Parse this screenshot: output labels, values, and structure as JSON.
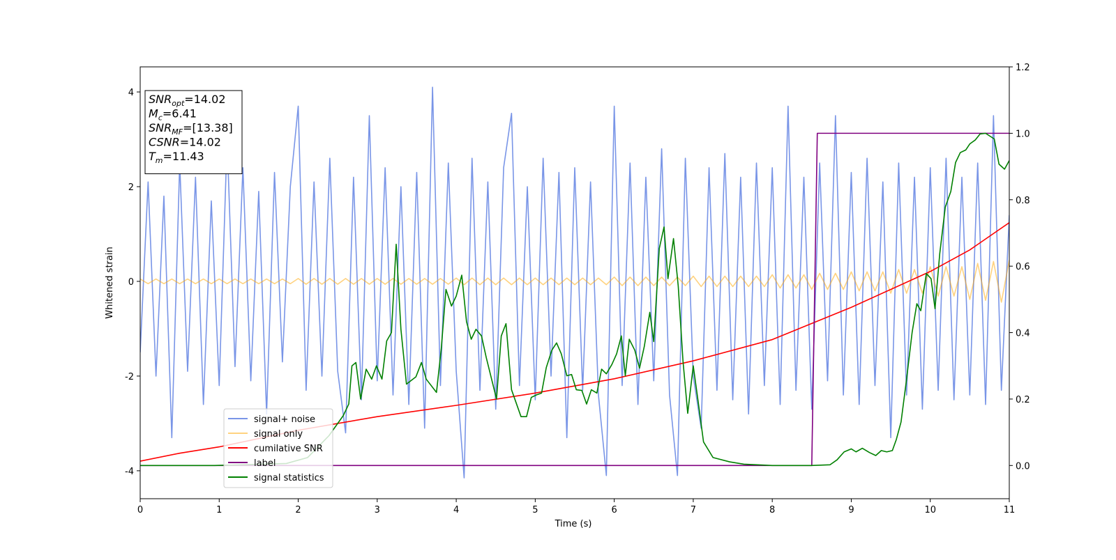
{
  "chart_data": {
    "type": "line",
    "xlabel": "Time (s)",
    "ylabel": "Whitened strain",
    "xlim": [
      0,
      11
    ],
    "xticks": [
      0,
      1,
      2,
      3,
      4,
      5,
      6,
      7,
      8,
      9,
      10,
      11
    ],
    "ylim": [
      -4.59,
      4.53
    ],
    "yticks": [
      -4,
      -2,
      0,
      2,
      4
    ],
    "y2lim": [
      -0.1,
      1.2
    ],
    "y2ticks": [
      {
        "value": 0,
        "label": "0.0"
      },
      0.2,
      0.4,
      0.6,
      0.8,
      {
        "value": 1,
        "label": "1.0"
      },
      1.2
    ],
    "legend": "lower left",
    "annotation_box": [
      {
        "text": "SNR",
        "sub": "opt",
        "rest": "=14.02"
      },
      {
        "text": "M",
        "sub": "c",
        "rest": "=6.41"
      },
      {
        "text": "SNR",
        "sub": "MF",
        "rest": "=[13.38]"
      },
      {
        "text": "CSNR",
        "rest": "=14.02"
      },
      {
        "text": "T",
        "sub": "m",
        "rest": "=11.43"
      }
    ],
    "series": [
      {
        "name": "signal+ noise",
        "color": "#6a89e4",
        "alpha": 0.9,
        "x": [
          0,
          0.1,
          0.2,
          0.3,
          0.4,
          0.5,
          0.6,
          0.7,
          0.8,
          0.9,
          1,
          1.1,
          1.2,
          1.3,
          1.4,
          1.5,
          1.6,
          1.7,
          1.8,
          1.9,
          2,
          2.1,
          2.2,
          2.3,
          2.4,
          2.5,
          2.6,
          2.7,
          2.8,
          2.9,
          3,
          3.1,
          3.2,
          3.3,
          3.4,
          3.5,
          3.6,
          3.7,
          3.8,
          3.9,
          4,
          4.1,
          4.2,
          4.3,
          4.4,
          4.5,
          4.6,
          4.7,
          4.8,
          4.9,
          5,
          5.1,
          5.2,
          5.3,
          5.4,
          5.5,
          5.6,
          5.7,
          5.8,
          5.9,
          6,
          6.1,
          6.2,
          6.3,
          6.4,
          6.5,
          6.6,
          6.7,
          6.8,
          6.9,
          7,
          7.1,
          7.2,
          7.3,
          7.4,
          7.5,
          7.6,
          7.7,
          7.8,
          7.9,
          8,
          8.1,
          8.2,
          8.3,
          8.4,
          8.5,
          8.6,
          8.7,
          8.8,
          8.9,
          9,
          9.1,
          9.2,
          9.3,
          9.4,
          9.5,
          9.6,
          9.7,
          9.8,
          9.9,
          10,
          10.1,
          10.2,
          10.3,
          10.4,
          10.5,
          10.6,
          10.7,
          10.8,
          10.9,
          11
        ],
        "values": [
          -1.5,
          2.1,
          -2.0,
          1.8,
          -3.3,
          2.5,
          -1.9,
          2.2,
          -2.6,
          1.7,
          -2.2,
          3.0,
          -1.8,
          2.4,
          -2.1,
          1.9,
          -2.8,
          2.3,
          -1.7,
          2.0,
          3.7,
          -2.3,
          2.1,
          -2.0,
          2.6,
          -1.9,
          -3.2,
          2.2,
          -2.5,
          3.5,
          -2.1,
          2.4,
          -2.4,
          2.0,
          -2.6,
          2.3,
          -3.1,
          4.1,
          -2.2,
          2.5,
          -1.9,
          -4.15,
          2.6,
          -2.3,
          2.1,
          -2.7,
          2.4,
          3.55,
          -2.2,
          2.0,
          -2.5,
          2.6,
          -2.0,
          2.3,
          -3.3,
          2.4,
          -2.3,
          2.1,
          -2.4,
          -4.1,
          3.7,
          -2.2,
          2.5,
          -2.6,
          2.2,
          -2.1,
          2.8,
          -2.4,
          -4.1,
          2.6,
          -2.0,
          -3.1,
          2.4,
          -2.3,
          2.7,
          -2.5,
          2.2,
          -2.8,
          2.5,
          -2.2,
          2.4,
          -2.6,
          3.7,
          -2.3,
          2.2,
          -2.7,
          2.5,
          -2.1,
          3.5,
          -2.4,
          2.3,
          -2.6,
          2.6,
          -2.2,
          2.1,
          -3.3,
          2.5,
          -2.4,
          2.2,
          -2.7,
          2.4,
          -2.3,
          2.6,
          -2.5,
          2.2,
          -2.4,
          2.5,
          -2.6,
          3.5,
          -2.3,
          1.4
        ]
      },
      {
        "name": "signal only",
        "color": "orange",
        "alpha": 0.5,
        "x": [
          0,
          0.1,
          0.2,
          0.3,
          0.4,
          0.5,
          0.6,
          0.7,
          0.8,
          0.9,
          1,
          1.1,
          1.2,
          1.3,
          1.4,
          1.5,
          1.6,
          1.7,
          1.8,
          1.9,
          2,
          2.1,
          2.2,
          2.3,
          2.4,
          2.5,
          2.6,
          2.7,
          2.8,
          2.9,
          3,
          3.1,
          3.2,
          3.3,
          3.4,
          3.5,
          3.6,
          3.7,
          3.8,
          3.9,
          4,
          4.1,
          4.2,
          4.3,
          4.4,
          4.5,
          4.6,
          4.7,
          4.8,
          4.9,
          5,
          5.1,
          5.2,
          5.3,
          5.4,
          5.5,
          5.6,
          5.7,
          5.8,
          5.9,
          6,
          6.1,
          6.2,
          6.3,
          6.4,
          6.5,
          6.6,
          6.7,
          6.8,
          6.9,
          7,
          7.1,
          7.2,
          7.3,
          7.4,
          7.5,
          7.6,
          7.7,
          7.8,
          7.9,
          8,
          8.1,
          8.2,
          8.3,
          8.4,
          8.5,
          8.6,
          8.7,
          8.8,
          8.9,
          9,
          9.1,
          9.2,
          9.3,
          9.4,
          9.5,
          9.6,
          9.7,
          9.8,
          9.9,
          10,
          10.1,
          10.2,
          10.3,
          10.4,
          10.5,
          10.6,
          10.7,
          10.8,
          10.9,
          11
        ],
        "values": [
          0.05,
          -0.05,
          0.05,
          -0.05,
          0.05,
          -0.05,
          0.05,
          -0.05,
          0.05,
          -0.05,
          0.05,
          -0.05,
          0.05,
          -0.05,
          0.05,
          -0.05,
          0.05,
          -0.05,
          0.05,
          -0.05,
          0.06,
          -0.06,
          0.06,
          -0.06,
          0.06,
          -0.06,
          0.06,
          -0.06,
          0.06,
          -0.06,
          0.06,
          -0.06,
          0.06,
          -0.06,
          0.06,
          -0.06,
          0.06,
          -0.06,
          0.06,
          -0.06,
          0.07,
          -0.07,
          0.07,
          -0.07,
          0.07,
          -0.07,
          0.07,
          -0.07,
          0.07,
          -0.07,
          0.07,
          -0.07,
          0.07,
          -0.07,
          0.07,
          -0.07,
          0.07,
          -0.07,
          0.07,
          -0.07,
          0.09,
          -0.09,
          0.09,
          -0.09,
          0.09,
          -0.09,
          0.09,
          -0.09,
          0.09,
          -0.09,
          0.11,
          -0.11,
          0.11,
          -0.11,
          0.11,
          -0.11,
          0.11,
          -0.11,
          0.11,
          -0.11,
          0.14,
          -0.14,
          0.14,
          -0.14,
          0.14,
          -0.17,
          0.17,
          -0.17,
          0.17,
          -0.17,
          0.2,
          -0.2,
          0.2,
          -0.2,
          0.2,
          -0.25,
          0.25,
          -0.25,
          0.25,
          -0.25,
          0.31,
          -0.31,
          0.31,
          -0.31,
          0.31,
          -0.38,
          0.38,
          -0.4,
          0.42,
          -0.44,
          0.45
        ]
      },
      {
        "name": "cumilative SNR",
        "color": "red",
        "axis": "y2",
        "x": [
          0,
          0.5,
          1,
          2,
          3,
          4,
          5,
          6,
          7,
          8,
          9,
          10,
          10.5,
          11
        ],
        "values": [
          0.013,
          0.037,
          0.056,
          0.106,
          0.147,
          0.181,
          0.218,
          0.261,
          0.315,
          0.379,
          0.476,
          0.584,
          0.649,
          0.731
        ]
      },
      {
        "name": "label",
        "color": "purple",
        "axis": "y2",
        "x": [
          0,
          8.5,
          8.57,
          11
        ],
        "values": [
          0,
          0,
          1,
          1
        ]
      },
      {
        "name": "signal statistics",
        "color": "green",
        "axis": "y2",
        "x": [
          0,
          0.94,
          1.85,
          2.12,
          2.39,
          2.57,
          2.64,
          2.68,
          2.73,
          2.79,
          2.86,
          2.93,
          2.99,
          3.06,
          3.12,
          3.18,
          3.24,
          3.3,
          3.37,
          3.49,
          3.56,
          3.62,
          3.75,
          3.81,
          3.87,
          3.94,
          4.0,
          4.07,
          4.13,
          4.19,
          4.25,
          4.32,
          4.38,
          4.51,
          4.57,
          4.63,
          4.7,
          4.82,
          4.89,
          4.95,
          5.02,
          5.08,
          5.14,
          5.21,
          5.27,
          5.33,
          5.4,
          5.46,
          5.52,
          5.59,
          5.65,
          5.71,
          5.78,
          5.84,
          5.9,
          5.97,
          6.03,
          6.09,
          6.14,
          6.19,
          6.26,
          6.32,
          6.38,
          6.45,
          6.5,
          6.57,
          6.63,
          6.68,
          6.75,
          6.81,
          6.87,
          6.93,
          7.0,
          7.06,
          7.13,
          7.25,
          7.46,
          7.64,
          8.0,
          8.5,
          8.73,
          8.82,
          8.91,
          9.0,
          9.06,
          9.14,
          9.23,
          9.31,
          9.38,
          9.45,
          9.52,
          9.57,
          9.63,
          9.7,
          9.77,
          9.83,
          9.88,
          9.95,
          10.01,
          10.06,
          10.12,
          10.19,
          10.26,
          10.32,
          10.38,
          10.45,
          10.5,
          10.57,
          10.63,
          10.7,
          10.81,
          10.87,
          10.94,
          11.0
        ],
        "values": [
          0,
          0,
          0.006,
          0.024,
          0.09,
          0.15,
          0.185,
          0.3,
          0.31,
          0.2,
          0.29,
          0.26,
          0.3,
          0.26,
          0.375,
          0.4,
          0.666,
          0.41,
          0.245,
          0.267,
          0.31,
          0.26,
          0.22,
          0.35,
          0.53,
          0.48,
          0.51,
          0.573,
          0.433,
          0.38,
          0.41,
          0.39,
          0.325,
          0.2,
          0.39,
          0.427,
          0.228,
          0.147,
          0.147,
          0.205,
          0.213,
          0.218,
          0.295,
          0.347,
          0.369,
          0.336,
          0.27,
          0.274,
          0.228,
          0.226,
          0.185,
          0.228,
          0.218,
          0.29,
          0.276,
          0.304,
          0.336,
          0.39,
          0.27,
          0.38,
          0.347,
          0.293,
          0.358,
          0.461,
          0.373,
          0.653,
          0.718,
          0.5625,
          0.683,
          0.54,
          0.315,
          0.157,
          0.3,
          0.196,
          0.071,
          0.024,
          0.011,
          0.004,
          0,
          0,
          0.002,
          0.017,
          0.041,
          0.05,
          0.041,
          0.052,
          0.039,
          0.03,
          0.045,
          0.041,
          0.045,
          0.078,
          0.131,
          0.26,
          0.4,
          0.487,
          0.466,
          0.578,
          0.5625,
          0.472,
          0.638,
          0.778,
          0.825,
          0.912,
          0.942,
          0.95,
          0.968,
          0.98,
          0.998,
          1.0,
          0.983,
          0.907,
          0.892,
          0.918
        ]
      }
    ]
  }
}
